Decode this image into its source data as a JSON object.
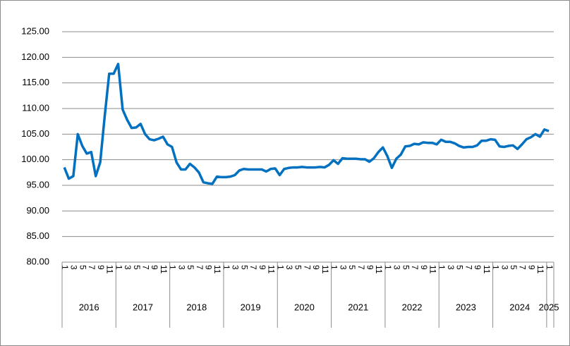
{
  "chart_data": {
    "type": "line",
    "categories": [
      "1",
      null,
      "3",
      null,
      "5",
      null,
      "7",
      null,
      "9",
      null,
      "11",
      null,
      "1",
      null,
      "3",
      null,
      "5",
      null,
      "7",
      null,
      "9",
      null,
      "11",
      null,
      "1",
      null,
      "3",
      null,
      "5",
      null,
      "7",
      null,
      "9",
      null,
      "11",
      null,
      "1",
      null,
      "3",
      null,
      "5",
      null,
      "7",
      null,
      "9",
      null,
      "11",
      null,
      "1",
      null,
      "3",
      null,
      "5",
      null,
      "7",
      null,
      "9",
      null,
      "11",
      null,
      "1",
      null,
      "3",
      null,
      "5",
      null,
      "7",
      null,
      "9",
      null,
      "11",
      null,
      "1",
      null,
      "3",
      null,
      "5",
      null,
      "7",
      null,
      "9",
      null,
      "11",
      null,
      "1",
      null,
      "3",
      null,
      "5",
      null,
      "7",
      null,
      "9",
      null,
      "11",
      null,
      "1",
      null,
      "3",
      null,
      "5",
      null,
      "7",
      null,
      "9",
      null,
      "11",
      null,
      "1"
    ],
    "years": [
      "2016",
      "2017",
      "2018",
      "2019",
      "2020",
      "2021",
      "2022",
      "2023",
      "2024",
      "2025"
    ],
    "series": [
      {
        "color": "#0070c0",
        "values": [
          98.5,
          96.3,
          96.8,
          105.0,
          102.7,
          101.2,
          101.5,
          96.8,
          99.5,
          108.5,
          116.8,
          116.8,
          118.7,
          109.8,
          107.8,
          106.2,
          106.3,
          107.0,
          105.0,
          104.0,
          103.8,
          104.1,
          104.5,
          103.0,
          102.5,
          99.5,
          98.1,
          98.1,
          99.2,
          98.5,
          97.5,
          95.6,
          95.4,
          95.3,
          96.7,
          96.6,
          96.6,
          96.7,
          97.0,
          97.9,
          98.2,
          98.1,
          98.1,
          98.1,
          98.1,
          97.7,
          98.2,
          98.3,
          97.0,
          98.2,
          98.4,
          98.5,
          98.5,
          98.6,
          98.5,
          98.5,
          98.5,
          98.6,
          98.5,
          99.0,
          99.9,
          99.2,
          100.3,
          100.2,
          100.2,
          100.2,
          100.1,
          100.1,
          99.6,
          100.3,
          101.5,
          102.4,
          100.7,
          98.4,
          100.2,
          101.0,
          102.6,
          102.7,
          103.1,
          103.0,
          103.4,
          103.3,
          103.3,
          103.0,
          103.9,
          103.5,
          103.5,
          103.2,
          102.7,
          102.4,
          102.5,
          102.5,
          102.8,
          103.7,
          103.7,
          104.0,
          103.9,
          102.6,
          102.5,
          102.7,
          102.8,
          102.1,
          103.0,
          104.0,
          104.4,
          105.0,
          104.5,
          105.9,
          105.6
        ]
      }
    ],
    "ylim": [
      80,
      125
    ],
    "yticks": [
      {
        "value": 80,
        "label": "80.00"
      },
      {
        "value": 85,
        "label": "85.00"
      },
      {
        "value": 90,
        "label": "90.00"
      },
      {
        "value": 95,
        "label": "95.00"
      },
      {
        "value": 100,
        "label": "100.00"
      },
      {
        "value": 105,
        "label": "105.00"
      },
      {
        "value": 110,
        "label": "110.00"
      },
      {
        "value": 115,
        "label": "115.00"
      },
      {
        "value": 120,
        "label": "120.00"
      },
      {
        "value": 125,
        "label": "125.00"
      }
    ],
    "grid": true
  }
}
